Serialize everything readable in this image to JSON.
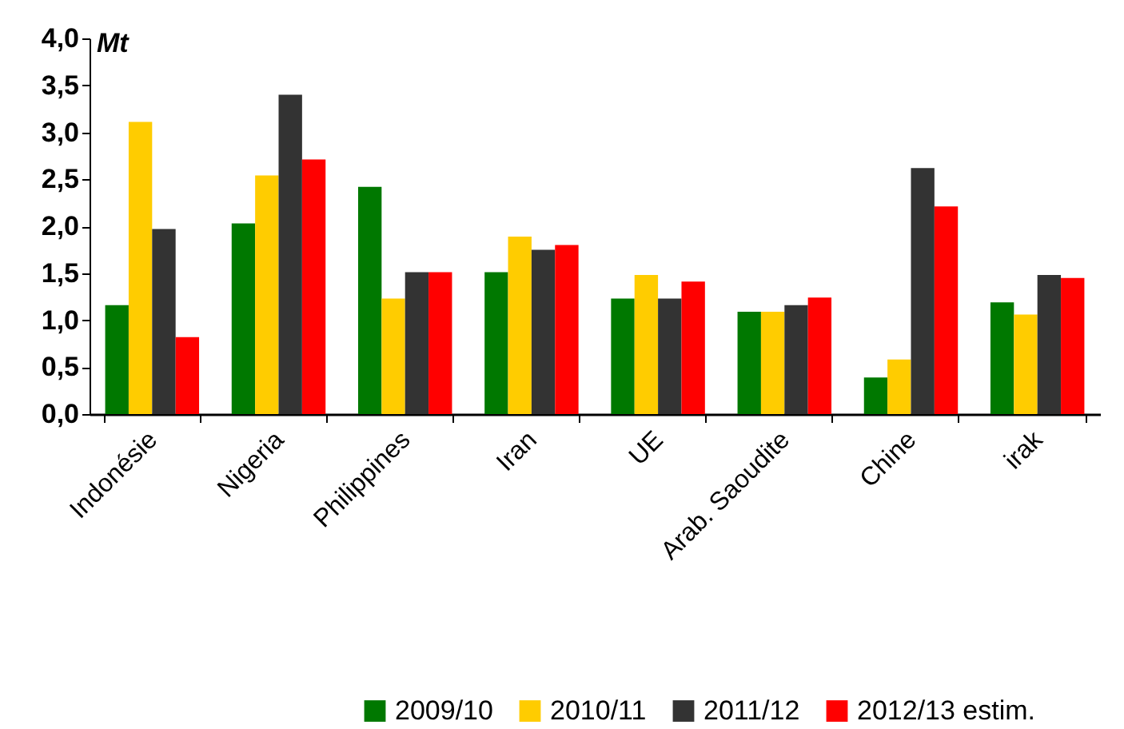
{
  "chart_data": {
    "type": "bar",
    "ylabel": "Mt",
    "categories": [
      "Indonésie",
      "Nigeria",
      "Philippines",
      "Iran",
      "UE",
      "Arab. Saoudite",
      "Chine",
      "irak"
    ],
    "series": [
      {
        "name": "2009/10",
        "color": "#007800",
        "values": [
          1.16,
          2.03,
          2.42,
          1.51,
          1.23,
          1.09,
          0.39,
          1.19
        ]
      },
      {
        "name": "2010/11",
        "color": "#ffcc00",
        "values": [
          3.11,
          2.54,
          1.23,
          1.89,
          1.48,
          1.09,
          0.58,
          1.06
        ]
      },
      {
        "name": "2011/12",
        "color": "#333333",
        "values": [
          1.97,
          3.4,
          1.51,
          1.75,
          1.23,
          1.16,
          2.62,
          1.48
        ]
      },
      {
        "name": "2012/13 estim.",
        "color": "#ff0000",
        "values": [
          0.82,
          2.71,
          1.51,
          1.8,
          1.41,
          1.24,
          2.21,
          1.45
        ]
      }
    ],
    "ylim": [
      0,
      4
    ],
    "yticks": [
      {
        "value": 0,
        "label": "0,0"
      },
      {
        "value": 0.5,
        "label": "0,5"
      },
      {
        "value": 1,
        "label": "1,0"
      },
      {
        "value": 1.5,
        "label": "1,5"
      },
      {
        "value": 2,
        "label": "2,0"
      },
      {
        "value": 2.5,
        "label": "2,5"
      },
      {
        "value": 3,
        "label": "3,0"
      },
      {
        "value": 3.5,
        "label": "3,5"
      },
      {
        "value": 4,
        "label": "4,0"
      }
    ],
    "grid": false,
    "legend": "bottom right"
  }
}
